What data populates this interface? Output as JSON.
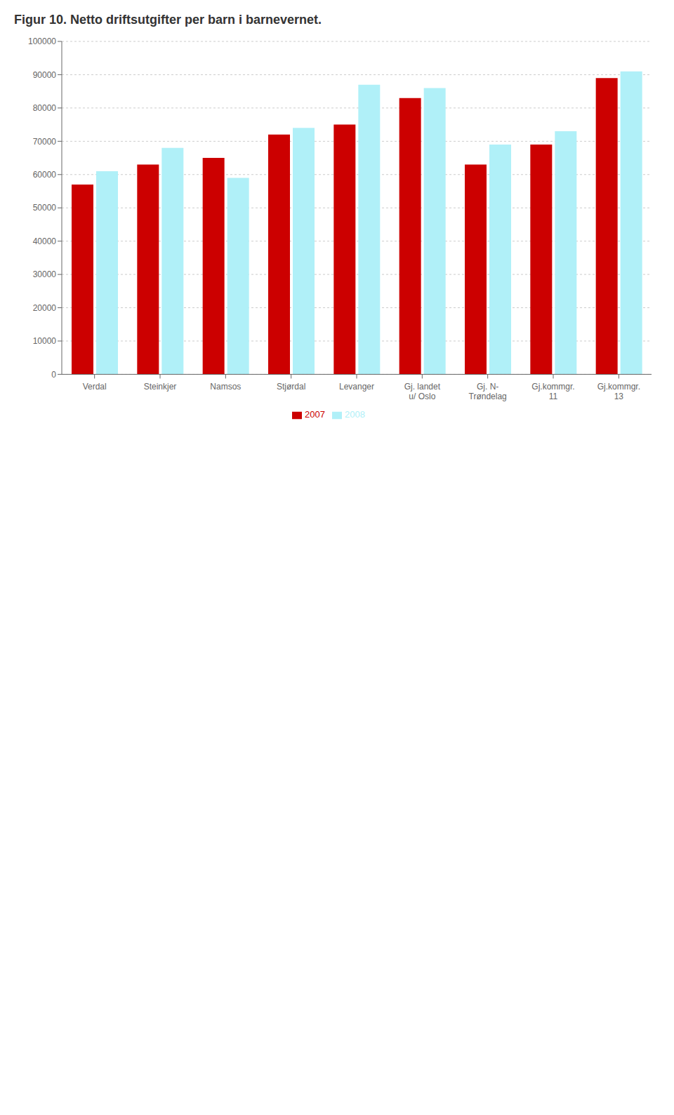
{
  "chart_data": {
    "type": "bar",
    "title": "Figur 10. Netto driftsutgifter per barn i barnevernet.",
    "categories": [
      "Verdal",
      "Steinkjer",
      "Namsos",
      "Stjørdal",
      "Levanger",
      "Gj. landet\nu/ Oslo",
      "Gj. N-\nTrøndelag",
      "Gj.kommgr.\n11",
      "Gj.kommgr.\n13"
    ],
    "series": [
      {
        "name": "2007",
        "color": "#cc0000",
        "values": [
          57000,
          63000,
          65000,
          72000,
          75000,
          83000,
          63000,
          69000,
          89000
        ]
      },
      {
        "name": "2008",
        "color": "#b0f0f8",
        "values": [
          61000,
          68000,
          59000,
          74000,
          87000,
          86000,
          69000,
          73000,
          91000
        ]
      }
    ],
    "ylim": [
      0,
      100000
    ],
    "yticks": [
      0,
      10000,
      20000,
      30000,
      40000,
      50000,
      60000,
      70000,
      80000,
      90000,
      100000
    ],
    "grid": true,
    "legend": "bottom"
  }
}
